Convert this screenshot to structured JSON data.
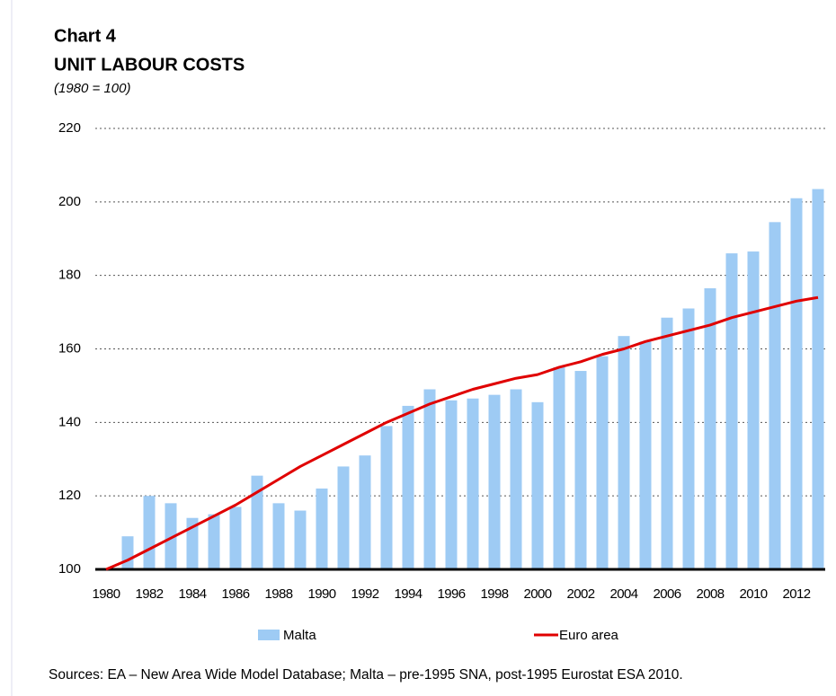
{
  "chart_data": {
    "type": "bar-line",
    "title": "Chart 4",
    "subtitle": "UNIT LABOUR COSTS",
    "note": "(1980 = 100)",
    "source": "Sources: EA – New Area Wide Model Database; Malta – pre-1995 SNA, post-1995 Eurostat ESA 2010.",
    "categories": [
      "1980",
      null,
      "1982",
      null,
      "1984",
      null,
      "1986",
      null,
      "1988",
      null,
      "1990",
      null,
      "1992",
      null,
      "1994",
      null,
      "1996",
      null,
      "1998",
      null,
      "2000",
      null,
      "2002",
      null,
      "2004",
      null,
      "2006",
      null,
      "2008",
      null,
      "2010",
      null,
      "2012",
      null
    ],
    "series": [
      {
        "name": "Malta",
        "type": "bar",
        "color": "#9ecbf4",
        "values": [
          100,
          109,
          120,
          118,
          114,
          115,
          117,
          125.5,
          118,
          116,
          122,
          128,
          131,
          139,
          144.5,
          149,
          146,
          146.5,
          147.5,
          149,
          145.5,
          155,
          154,
          158,
          163.5,
          162,
          168.5,
          171,
          176.5,
          186,
          186.5,
          194.5,
          201,
          203.5
        ]
      },
      {
        "name": "Euro area",
        "type": "line",
        "color": "#e00000",
        "values": [
          100,
          102.5,
          105.5,
          108.5,
          111.5,
          114.5,
          117.5,
          121,
          124.5,
          128,
          131,
          134,
          137,
          140,
          142.5,
          145,
          147,
          149,
          150.5,
          152,
          153,
          155,
          156.5,
          158.5,
          160,
          162,
          163.5,
          165,
          166.5,
          168.5,
          170,
          171.5,
          173,
          174
        ]
      }
    ],
    "ylim": [
      100,
      220
    ],
    "yticks": [
      100,
      120,
      140,
      160,
      180,
      200,
      220
    ],
    "grid": true,
    "legend": "bottom"
  }
}
